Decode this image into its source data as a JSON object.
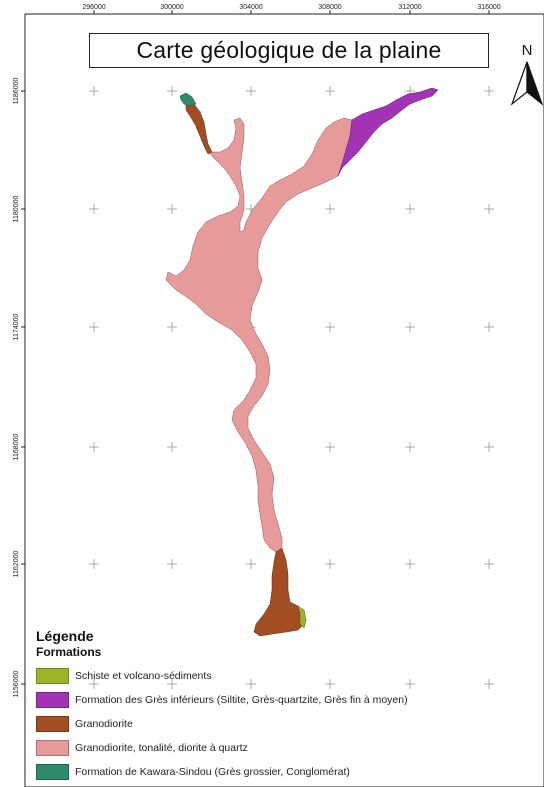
{
  "map": {
    "title": "Carte géologique de la plaine",
    "north_label": "N",
    "x_ticks": [
      "296000",
      "300000",
      "304000",
      "308000",
      "312000",
      "316000"
    ],
    "y_ticks": [
      "1186000",
      "1180000",
      "1174000",
      "1168000",
      "1162000",
      "1156000"
    ]
  },
  "legend": {
    "title": "Légende",
    "subtitle": "Formations",
    "items": [
      {
        "label": "Schiste et volcano-sédiments",
        "color": "#9bb52a"
      },
      {
        "label": "Formation des Grès inférieurs (Siltite, Grès-quartzite, Grès fin à moyen)",
        "color": "#a233b5"
      },
      {
        "label": "Granodiorite",
        "color": "#a24e22"
      },
      {
        "label": "Granodiorite, tonalité, diorite à quartz",
        "color": "#e69a9a"
      },
      {
        "label": "Formation de Kawara-Sindou (Grès grossier, Conglomérat)",
        "color": "#2e8a6b"
      }
    ]
  }
}
